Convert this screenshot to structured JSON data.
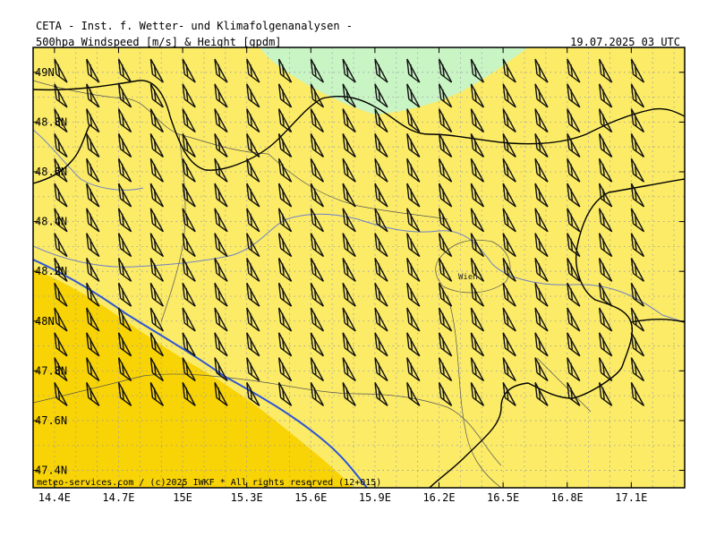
{
  "header": {
    "organization": "CETA - Inst. f. Wetter- und Klimafolgenanalysen -",
    "product": "500hpa Windspeed [m/s] & Height [gpdm]",
    "valid_time": "19.07.2025 03 UTC"
  },
  "map": {
    "lon_min": 14.3,
    "lon_max": 17.35,
    "lat_min": 47.33,
    "lat_max": 49.1,
    "lon_labels": [
      "14.4E",
      "14.7E",
      "15E",
      "15.3E",
      "15.6E",
      "15.9E",
      "16.2E",
      "16.5E",
      "16.8E",
      "17.1E"
    ],
    "lon_values": [
      14.4,
      14.7,
      15.0,
      15.3,
      15.6,
      15.9,
      16.2,
      16.5,
      16.8,
      17.1
    ],
    "lat_labels": [
      "49N",
      "48.8N",
      "48.6N",
      "48.4N",
      "48.2N",
      "48N",
      "47.8N",
      "47.6N",
      "47.4N"
    ],
    "lat_values": [
      49.0,
      48.8,
      48.6,
      48.4,
      48.2,
      48.0,
      47.8,
      47.6,
      47.4
    ],
    "city_label": "Wien",
    "copyright": "meteo-services.com / (c)2025 IWKF * All rights reserved (12+015)",
    "colors": {
      "windspeed_yellow": "#fbeb67",
      "windspeed_gold": "#f8d306",
      "windspeed_green": "#c9f5c5",
      "height_contour": "#2f55d4",
      "border": "#000000",
      "river": "#7080c8",
      "grid": "#9999aa"
    },
    "wind_barbs": "uniform field of west-northwest barbs (about 25 kt)"
  }
}
